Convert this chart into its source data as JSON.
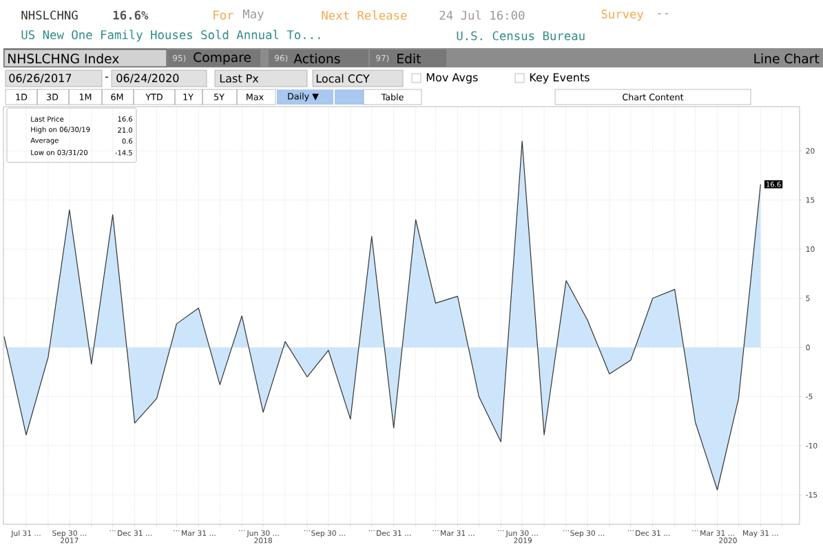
{
  "chart_data": {
    "type": "area",
    "title": "US New One Family Houses Sold Annual To...",
    "x": [
      "2017-06-30",
      "2017-07-31",
      "2017-08-31",
      "2017-09-30",
      "2017-10-31",
      "2017-11-30",
      "2017-12-31",
      "2018-01-31",
      "2018-02-28",
      "2018-03-31",
      "2018-04-30",
      "2018-05-31",
      "2018-06-30",
      "2018-07-31",
      "2018-08-31",
      "2018-09-30",
      "2018-10-31",
      "2018-11-30",
      "2018-12-31",
      "2019-01-31",
      "2019-02-28",
      "2019-03-31",
      "2019-04-30",
      "2019-05-31",
      "2019-06-30",
      "2019-07-31",
      "2019-08-31",
      "2019-09-30",
      "2019-10-31",
      "2019-11-30",
      "2019-12-31",
      "2020-01-31",
      "2020-02-29",
      "2020-03-31",
      "2020-04-30",
      "2020-05-31"
    ],
    "series": [
      {
        "color": "#cde5fb",
        "values": [
          1.1,
          -8.9,
          -1.0,
          14.0,
          -1.7,
          13.5,
          -7.7,
          -5.2,
          2.4,
          4.0,
          -3.8,
          3.2,
          -6.6,
          0.6,
          -3.0,
          -0.3,
          -7.3,
          11.3,
          -8.2,
          13.0,
          4.5,
          5.2,
          -5.0,
          -9.6,
          21.0,
          -8.9,
          6.8,
          2.8,
          -2.7,
          -1.3,
          5.0,
          5.9,
          -7.6,
          -14.5,
          -5.2,
          16.6
        ]
      }
    ],
    "xlim": [
      "2017-06-29",
      "2020-07-25"
    ],
    "ylim": [
      -18,
      24.5
    ],
    "yticks": [
      -15,
      -10,
      -5,
      0,
      5,
      10,
      15,
      20
    ],
    "xticks": [
      {
        "value": "2017-07-31",
        "label": "Jul 31 ..."
      },
      {
        "value": "2017-08-31",
        "label": null
      },
      {
        "value": "2017-09-30",
        "label": "Sep 30 ..."
      },
      {
        "value": "2017-10-31",
        "label": null
      },
      {
        "value": "2017-11-30",
        "label": "..."
      },
      {
        "value": "2017-12-31",
        "label": "Dec 31 ..."
      },
      {
        "value": "2018-01-31",
        "label": null
      },
      {
        "value": "2018-02-28",
        "label": "..."
      },
      {
        "value": "2018-03-31",
        "label": "Mar 31 ..."
      },
      {
        "value": "2018-04-30",
        "label": null
      },
      {
        "value": "2018-05-31",
        "label": "..."
      },
      {
        "value": "2018-06-30",
        "label": "Jun 30 ..."
      },
      {
        "value": "2018-07-31",
        "label": null
      },
      {
        "value": "2018-08-31",
        "label": "..."
      },
      {
        "value": "2018-09-30",
        "label": "Sep 30 ..."
      },
      {
        "value": "2018-10-31",
        "label": null
      },
      {
        "value": "2018-11-30",
        "label": "..."
      },
      {
        "value": "2018-12-31",
        "label": "Dec 31 ..."
      },
      {
        "value": "2019-01-31",
        "label": null
      },
      {
        "value": "2019-02-28",
        "label": "..."
      },
      {
        "value": "2019-03-31",
        "label": "Mar 31 ..."
      },
      {
        "value": "2019-04-30",
        "label": null
      },
      {
        "value": "2019-05-31",
        "label": "..."
      },
      {
        "value": "2019-06-30",
        "label": "Jun 30 ..."
      },
      {
        "value": "2019-07-31",
        "label": null
      },
      {
        "value": "2019-08-31",
        "label": "..."
      },
      {
        "value": "2019-09-30",
        "label": "Sep 30 ..."
      },
      {
        "value": "2019-10-31",
        "label": null
      },
      {
        "value": "2019-11-30",
        "label": "..."
      },
      {
        "value": "2019-12-31",
        "label": "Dec 31 ..."
      },
      {
        "value": "2020-01-31",
        "label": null
      },
      {
        "value": "2020-02-29",
        "label": "..."
      },
      {
        "value": "2020-03-31",
        "label": "Mar 31 ..."
      },
      {
        "value": "2020-04-30",
        "label": null
      },
      {
        "value": "2020-05-31",
        "label": "May 31 ..."
      },
      {
        "value": "2020-06-30",
        "label": null
      }
    ],
    "x2lim": [
      "2017-06-29",
      "2020-07-25"
    ],
    "x2ticks": [
      {
        "value": "2017-09-30",
        "label": "2017"
      },
      {
        "value": "2018-06-30",
        "label": "2018"
      },
      {
        "value": "2019-07-01",
        "label": "2019"
      },
      {
        "value": "2020-04-15",
        "label": "2020"
      }
    ],
    "grid": true,
    "annotations": [
      "NHSLCHNG",
      "16.6%",
      "For",
      "May",
      "Next Release",
      "24 Jul 16:00",
      "Survey",
      "--",
      "U.S. Census Bureau",
      "NHSLCHNG Index",
      "95)",
      "Compare",
      "96)",
      "Actions",
      "97)",
      "Edit",
      "Line Chart",
      "06/26/2017",
      "-",
      "06/24/2020",
      "Last Px",
      "Local CCY",
      "Mov Avgs",
      "Key Events",
      "1D",
      "3D",
      "1M",
      "6M",
      "YTD",
      "1Y",
      "5Y",
      "Max",
      "Daily ▼",
      "Table",
      "Chart Content",
      "Last Price",
      "16.6",
      "High on 06/30/19",
      "21.0",
      "Average",
      "0.6",
      "Low on 03/31/20",
      "-14.5",
      {
        "text": "16.6",
        "x": "2020-05-31",
        "y": 16.6
      }
    ]
  }
}
